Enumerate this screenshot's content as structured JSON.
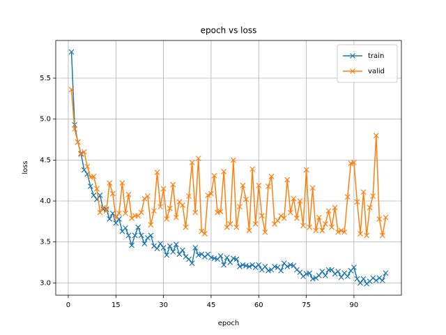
{
  "chart_data": {
    "type": "line",
    "title": "epoch vs loss",
    "x_label": "epoch",
    "y_label": "loss",
    "x": [
      1,
      2,
      3,
      4,
      5,
      6,
      7,
      8,
      9,
      10,
      11,
      12,
      13,
      14,
      15,
      16,
      17,
      18,
      19,
      20,
      21,
      22,
      23,
      24,
      25,
      26,
      27,
      28,
      29,
      30,
      31,
      32,
      33,
      34,
      35,
      36,
      37,
      38,
      39,
      40,
      41,
      42,
      43,
      44,
      45,
      46,
      47,
      48,
      49,
      50,
      51,
      52,
      53,
      54,
      55,
      56,
      57,
      58,
      59,
      60,
      61,
      62,
      63,
      64,
      65,
      66,
      67,
      68,
      69,
      70,
      71,
      72,
      73,
      74,
      75,
      76,
      77,
      78,
      79,
      80,
      81,
      82,
      83,
      84,
      85,
      86,
      87,
      88,
      89,
      90,
      91,
      92,
      93,
      94,
      95,
      96,
      97,
      98,
      99,
      100
    ],
    "series": [
      {
        "name": "train",
        "color": "#1f77b4",
        "values": [
          5.82,
          4.93,
          4.72,
          4.58,
          4.38,
          4.33,
          4.18,
          4.07,
          4.02,
          4.07,
          3.9,
          3.9,
          3.78,
          3.85,
          3.73,
          3.78,
          3.63,
          3.67,
          3.58,
          3.46,
          3.58,
          3.68,
          3.58,
          3.48,
          3.55,
          3.58,
          3.45,
          3.42,
          3.48,
          3.43,
          3.34,
          3.45,
          3.38,
          3.47,
          3.35,
          3.4,
          3.32,
          3.29,
          3.24,
          3.43,
          3.34,
          3.35,
          3.32,
          3.35,
          3.31,
          3.3,
          3.29,
          3.33,
          3.22,
          3.31,
          3.25,
          3.3,
          3.29,
          3.2,
          3.22,
          3.21,
          3.2,
          3.22,
          3.19,
          3.22,
          3.16,
          3.2,
          3.15,
          3.16,
          3.2,
          3.19,
          3.15,
          3.24,
          3.2,
          3.22,
          3.21,
          3.16,
          3.13,
          3.08,
          3.11,
          3.12,
          3.05,
          3.06,
          3.09,
          3.14,
          3.09,
          3.16,
          3.16,
          3.11,
          3.14,
          3.07,
          3.12,
          3.08,
          3.15,
          3.19,
          3.05,
          3.0,
          3.05,
          2.99,
          3.02,
          3.06,
          3.03,
          3.06,
          3.03,
          3.12
        ]
      },
      {
        "name": "valid",
        "color": "#ff7f0e",
        "values": [
          5.36,
          4.88,
          4.72,
          4.57,
          4.6,
          4.42,
          4.29,
          4.3,
          4.15,
          3.86,
          3.92,
          3.88,
          4.22,
          4.09,
          3.8,
          3.85,
          4.22,
          3.85,
          4.08,
          3.79,
          3.82,
          3.82,
          3.86,
          4.03,
          4.06,
          3.71,
          3.88,
          4.35,
          3.93,
          4.15,
          3.78,
          3.91,
          4.2,
          3.8,
          3.99,
          3.95,
          3.68,
          4.06,
          4.47,
          3.86,
          4.52,
          3.63,
          3.6,
          4.07,
          4.09,
          4.31,
          3.86,
          3.87,
          4.36,
          3.68,
          3.72,
          4.5,
          3.68,
          3.93,
          4.19,
          4.02,
          3.64,
          4.39,
          3.72,
          4.19,
          3.82,
          3.62,
          4.18,
          4.3,
          3.72,
          3.76,
          3.82,
          3.79,
          4.26,
          3.86,
          4.03,
          3.79,
          4.0,
          3.7,
          4.38,
          3.68,
          4.16,
          3.64,
          3.8,
          3.64,
          3.72,
          3.88,
          3.68,
          3.92,
          3.62,
          3.64,
          3.62,
          4.05,
          4.46,
          4.47,
          3.99,
          3.6,
          4.11,
          3.58,
          3.92,
          4.06,
          4.8,
          3.78,
          3.58,
          3.8
        ]
      }
    ],
    "xlim": [
      -3.95,
      104.95
    ],
    "ylim": [
      2.85,
      5.96
    ],
    "xticks": [
      0,
      15,
      30,
      45,
      60,
      75,
      90
    ],
    "yticks": [
      {
        "value": 3,
        "label": "3.0"
      },
      3.5,
      {
        "value": 4,
        "label": "4.0"
      },
      4.5,
      {
        "value": 5,
        "label": "5.0"
      },
      5.5
    ],
    "grid": true,
    "legend": "upper right",
    "marker": "x"
  }
}
